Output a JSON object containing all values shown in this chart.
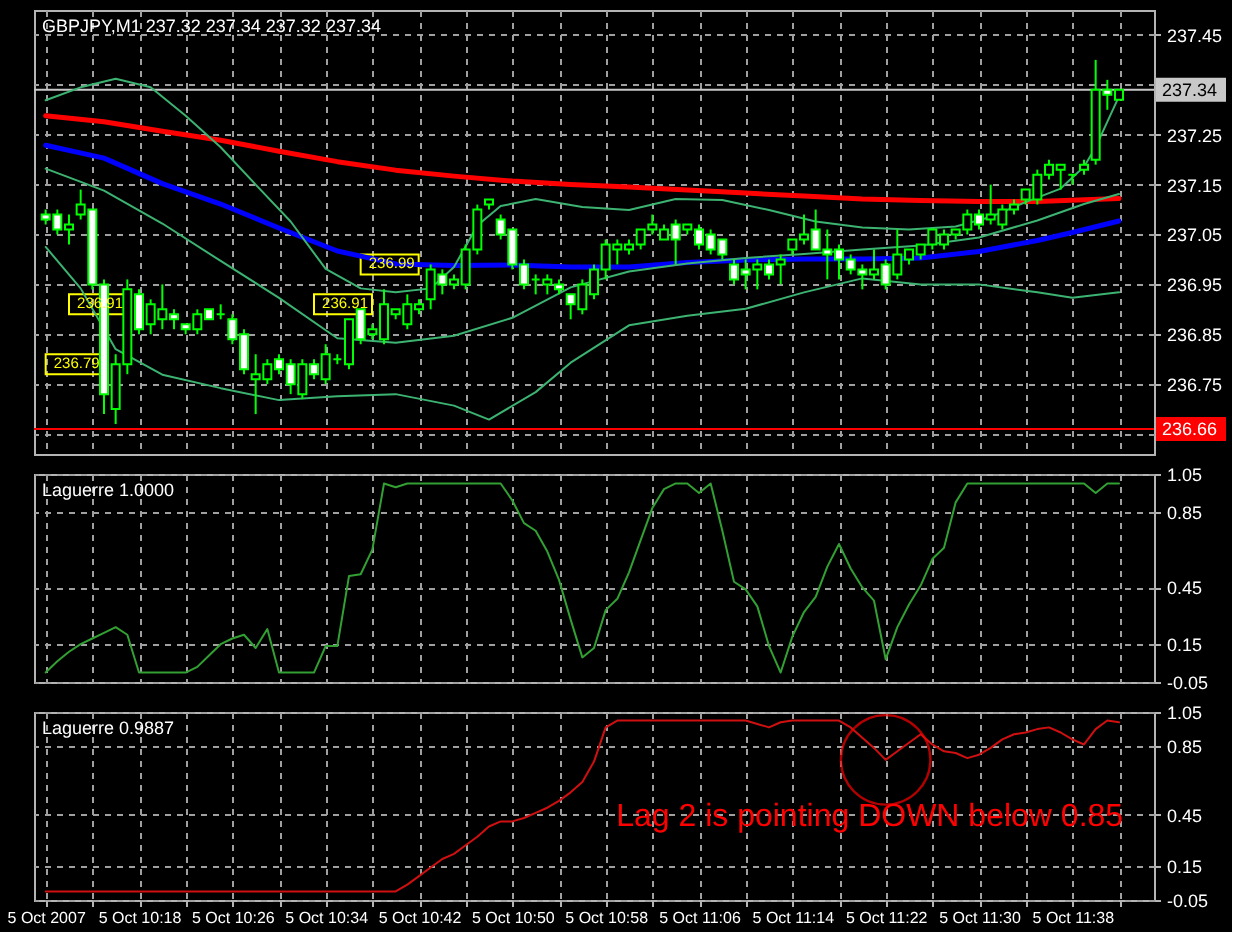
{
  "chart_data": [
    {
      "type": "candlestick",
      "title": "GBPJPY,M1 237.32 237.34 237.32 237.34",
      "color": "#00ff00",
      "x": [
        "2007-10-05T10:10",
        "2007-10-05T10:11",
        "2007-10-05T10:12",
        "2007-10-05T10:13",
        "2007-10-05T10:14",
        "2007-10-05T10:15",
        "2007-10-05T10:16",
        "2007-10-05T10:17",
        "2007-10-05T10:18",
        "2007-10-05T10:19",
        "2007-10-05T10:20",
        "2007-10-05T10:21",
        "2007-10-05T10:22",
        "2007-10-05T10:23",
        "2007-10-05T10:24",
        "2007-10-05T10:25",
        "2007-10-05T10:26",
        "2007-10-05T10:27",
        "2007-10-05T10:28",
        "2007-10-05T10:29",
        "2007-10-05T10:30",
        "2007-10-05T10:31",
        "2007-10-05T10:32",
        "2007-10-05T10:33",
        "2007-10-05T10:34",
        "2007-10-05T10:35",
        "2007-10-05T10:36",
        "2007-10-05T10:37",
        "2007-10-05T10:38",
        "2007-10-05T10:39",
        "2007-10-05T10:40",
        "2007-10-05T10:41",
        "2007-10-05T10:42",
        "2007-10-05T10:43",
        "2007-10-05T10:44",
        "2007-10-05T10:45",
        "2007-10-05T10:46",
        "2007-10-05T10:47",
        "2007-10-05T10:48",
        "2007-10-05T10:49",
        "2007-10-05T10:50",
        "2007-10-05T10:51",
        "2007-10-05T10:52",
        "2007-10-05T10:53",
        "2007-10-05T10:54",
        "2007-10-05T10:55",
        "2007-10-05T10:56",
        "2007-10-05T10:57",
        "2007-10-05T10:58",
        "2007-10-05T10:59",
        "2007-10-05T11:00",
        "2007-10-05T11:01",
        "2007-10-05T11:02",
        "2007-10-05T11:03",
        "2007-10-05T11:04",
        "2007-10-05T11:05",
        "2007-10-05T11:06",
        "2007-10-05T11:07",
        "2007-10-05T11:08",
        "2007-10-05T11:09",
        "2007-10-05T11:10",
        "2007-10-05T11:11",
        "2007-10-05T11:12",
        "2007-10-05T11:13",
        "2007-10-05T11:14",
        "2007-10-05T11:15",
        "2007-10-05T11:16",
        "2007-10-05T11:17",
        "2007-10-05T11:18",
        "2007-10-05T11:19",
        "2007-10-05T11:20",
        "2007-10-05T11:21",
        "2007-10-05T11:22",
        "2007-10-05T11:23",
        "2007-10-05T11:24",
        "2007-10-05T11:25",
        "2007-10-05T11:26",
        "2007-10-05T11:27",
        "2007-10-05T11:28",
        "2007-10-05T11:29",
        "2007-10-05T11:30",
        "2007-10-05T11:31",
        "2007-10-05T11:32",
        "2007-10-05T11:33",
        "2007-10-05T11:34",
        "2007-10-05T11:35",
        "2007-10-05T11:36",
        "2007-10-05T11:37",
        "2007-10-05T11:38",
        "2007-10-05T11:39",
        "2007-10-05T11:40",
        "2007-10-05T11:41",
        "2007-10-05T11:42"
      ],
      "ohlc": [
        [
          237.09,
          237.1,
          237.07,
          237.08
        ],
        [
          237.09,
          237.1,
          237.05,
          237.06
        ],
        [
          237.06,
          237.09,
          237.03,
          237.07
        ],
        [
          237.09,
          237.14,
          237.08,
          237.11
        ],
        [
          237.1,
          237.1,
          236.94,
          236.95
        ],
        [
          236.95,
          236.96,
          236.69,
          236.73
        ],
        [
          236.7,
          236.81,
          236.67,
          236.79
        ],
        [
          236.79,
          236.96,
          236.77,
          236.94
        ],
        [
          236.93,
          236.94,
          236.85,
          236.86
        ],
        [
          236.87,
          236.92,
          236.85,
          236.91
        ],
        [
          236.88,
          236.95,
          236.86,
          236.9
        ],
        [
          236.89,
          236.9,
          236.86,
          236.88
        ],
        [
          236.87,
          236.87,
          236.85,
          236.86
        ],
        [
          236.86,
          236.9,
          236.85,
          236.89
        ],
        [
          236.9,
          236.9,
          236.88,
          236.88
        ],
        [
          236.89,
          236.91,
          236.88,
          236.89
        ],
        [
          236.88,
          236.89,
          236.83,
          236.84
        ],
        [
          236.85,
          236.86,
          236.77,
          236.78
        ],
        [
          236.76,
          236.81,
          236.69,
          236.77
        ],
        [
          236.76,
          236.8,
          236.75,
          236.79
        ],
        [
          236.8,
          236.81,
          236.77,
          236.78
        ],
        [
          236.79,
          236.8,
          236.73,
          236.75
        ],
        [
          236.73,
          236.8,
          236.72,
          236.79
        ],
        [
          236.79,
          236.8,
          236.76,
          236.77
        ],
        [
          236.76,
          236.83,
          236.75,
          236.81
        ],
        [
          236.8,
          236.81,
          236.79,
          236.8
        ],
        [
          236.79,
          236.88,
          236.78,
          236.88
        ],
        [
          236.9,
          236.9,
          236.83,
          236.84
        ],
        [
          236.85,
          236.87,
          236.84,
          236.86
        ],
        [
          236.84,
          236.94,
          236.83,
          236.91
        ],
        [
          236.89,
          236.9,
          236.88,
          236.9
        ],
        [
          236.87,
          236.93,
          236.86,
          236.91
        ],
        [
          236.9,
          236.92,
          236.89,
          236.91
        ],
        [
          236.92,
          236.99,
          236.9,
          236.98
        ],
        [
          236.97,
          236.98,
          236.93,
          236.95
        ],
        [
          236.95,
          236.97,
          236.94,
          236.96
        ],
        [
          236.95,
          237.03,
          236.94,
          237.02
        ],
        [
          237.02,
          237.11,
          237.01,
          237.1
        ],
        [
          237.11,
          237.12,
          237.1,
          237.12
        ],
        [
          237.08,
          237.09,
          237.04,
          237.05
        ],
        [
          237.06,
          237.06,
          236.98,
          236.99
        ],
        [
          236.99,
          237.0,
          236.94,
          236.95
        ],
        [
          236.96,
          236.97,
          236.93,
          236.96
        ],
        [
          236.95,
          236.97,
          236.93,
          236.96
        ],
        [
          236.95,
          236.96,
          236.93,
          236.94
        ],
        [
          236.93,
          236.93,
          236.88,
          236.91
        ],
        [
          236.9,
          236.96,
          236.89,
          236.95
        ],
        [
          236.93,
          236.99,
          236.92,
          236.98
        ],
        [
          236.98,
          237.04,
          236.96,
          237.03
        ],
        [
          237.02,
          237.04,
          236.99,
          237.03
        ],
        [
          237.02,
          237.04,
          237.01,
          237.03
        ],
        [
          237.03,
          237.06,
          237.02,
          237.06
        ],
        [
          237.06,
          237.09,
          237.05,
          237.07
        ],
        [
          237.04,
          237.07,
          237.04,
          237.06
        ],
        [
          237.07,
          237.08,
          236.99,
          237.04
        ],
        [
          237.06,
          237.07,
          237.05,
          237.07
        ],
        [
          237.06,
          237.07,
          237.02,
          237.03
        ],
        [
          237.05,
          237.06,
          237.01,
          237.02
        ],
        [
          237.04,
          237.04,
          237.0,
          237.01
        ],
        [
          236.99,
          237.0,
          236.95,
          236.96
        ],
        [
          236.98,
          237.0,
          236.94,
          236.97
        ],
        [
          236.98,
          237.0,
          236.94,
          236.99
        ],
        [
          236.99,
          237.0,
          236.96,
          236.97
        ],
        [
          236.99,
          237.01,
          236.95,
          237.0
        ],
        [
          237.02,
          237.04,
          237.01,
          237.04
        ],
        [
          237.04,
          237.09,
          237.03,
          237.05
        ],
        [
          237.06,
          237.1,
          237.02,
          237.02
        ],
        [
          237.02,
          237.06,
          236.96,
          237.01
        ],
        [
          237.02,
          237.03,
          236.96,
          237.0
        ],
        [
          237.0,
          237.01,
          236.97,
          236.98
        ],
        [
          236.98,
          236.99,
          236.94,
          236.97
        ],
        [
          236.97,
          237.02,
          236.96,
          236.98
        ],
        [
          236.99,
          237.0,
          236.94,
          236.95
        ],
        [
          236.97,
          237.06,
          236.96,
          237.01
        ],
        [
          237.0,
          237.02,
          236.99,
          237.02
        ],
        [
          237.01,
          237.03,
          237.0,
          237.03
        ],
        [
          237.03,
          237.06,
          237.02,
          237.06
        ],
        [
          237.03,
          237.06,
          237.02,
          237.05
        ],
        [
          237.05,
          237.06,
          237.04,
          237.06
        ],
        [
          237.06,
          237.1,
          237.05,
          237.09
        ],
        [
          237.09,
          237.1,
          237.06,
          237.07
        ],
        [
          237.08,
          237.15,
          237.07,
          237.09
        ],
        [
          237.07,
          237.11,
          237.06,
          237.1
        ],
        [
          237.1,
          237.12,
          237.09,
          237.11
        ],
        [
          237.12,
          237.14,
          237.11,
          237.14
        ],
        [
          237.12,
          237.18,
          237.11,
          237.17
        ],
        [
          237.17,
          237.2,
          237.16,
          237.19
        ],
        [
          237.18,
          237.19,
          237.14,
          237.19
        ],
        [
          237.17,
          237.17,
          237.15,
          237.17
        ],
        [
          237.18,
          237.2,
          237.17,
          237.19
        ],
        [
          237.2,
          237.4,
          237.19,
          237.34
        ],
        [
          237.34,
          237.36,
          237.3,
          237.33
        ],
        [
          237.32,
          237.34,
          237.32,
          237.34
        ]
      ],
      "colors": [
        "#ffffff",
        "#ffffff",
        "#000000",
        "#000000",
        "#ffffff",
        "#ffffff",
        "#000000",
        "#000000",
        "#ffffff",
        "#000000",
        "#000000",
        "#ffffff",
        "#ffffff",
        "#000000",
        "#ffffff",
        "#00ff00",
        "#ffffff",
        "#ffffff",
        "#000000",
        "#000000",
        "#ffffff",
        "#ffffff",
        "#000000",
        "#ffffff",
        "#000000",
        "#00ff00",
        "#000000",
        "#ffffff",
        "#000000",
        "#000000",
        "#000000",
        "#000000",
        "#000000",
        "#000000",
        "#ffffff",
        "#000000",
        "#000000",
        "#000000",
        "#000000",
        "#ffffff",
        "#ffffff",
        "#ffffff",
        "#00ff00",
        "#000000",
        "#ffffff",
        "#ffffff",
        "#000000",
        "#000000",
        "#000000",
        "#000000",
        "#000000",
        "#000000",
        "#000000",
        "#000000",
        "#ffffff",
        "#000000",
        "#ffffff",
        "#ffffff",
        "#ffffff",
        "#ffffff",
        "#ffffff",
        "#000000",
        "#ffffff",
        "#000000",
        "#000000",
        "#000000",
        "#ffffff",
        "#ffffff",
        "#ffffff",
        "#ffffff",
        "#ffffff",
        "#000000",
        "#ffffff",
        "#000000",
        "#000000",
        "#000000",
        "#000000",
        "#000000",
        "#000000",
        "#000000",
        "#ffffff",
        "#000000",
        "#000000",
        "#000000",
        "#000000",
        "#000000",
        "#000000",
        "#000000",
        "#00ff00",
        "#000000",
        "#000000",
        "#ffffff",
        "#000000"
      ],
      "series": [
        {
          "type": "line",
          "color": "#ff0000",
          "x": [
            "2007-10-05T10:10",
            "2007-10-05T10:15",
            "2007-10-05T10:20",
            "2007-10-05T10:25",
            "2007-10-05T10:30",
            "2007-10-05T10:35",
            "2007-10-05T10:40",
            "2007-10-05T10:45",
            "2007-10-05T10:50",
            "2007-10-05T10:55",
            "2007-10-05T11:00",
            "2007-10-05T11:05",
            "2007-10-05T11:10",
            "2007-10-05T11:15",
            "2007-10-05T11:20",
            "2007-10-05T11:25",
            "2007-10-05T11:30",
            "2007-10-05T11:35",
            "2007-10-05T11:42"
          ],
          "values": [
            237.288,
            237.276,
            237.257,
            237.239,
            237.217,
            237.196,
            237.179,
            237.167,
            237.157,
            237.15,
            237.145,
            237.139,
            237.133,
            237.127,
            237.121,
            237.118,
            237.116,
            237.116,
            237.122
          ]
        },
        {
          "type": "line",
          "color": "#0000ff",
          "x": [
            "2007-10-05T10:10",
            "2007-10-05T10:15",
            "2007-10-05T10:20",
            "2007-10-05T10:25",
            "2007-10-05T10:30",
            "2007-10-05T10:35",
            "2007-10-05T10:40",
            "2007-10-05T10:45",
            "2007-10-05T10:50",
            "2007-10-05T10:55",
            "2007-10-05T11:00",
            "2007-10-05T11:05",
            "2007-10-05T11:10",
            "2007-10-05T11:15",
            "2007-10-05T11:20",
            "2007-10-05T11:25",
            "2007-10-05T11:30",
            "2007-10-05T11:35",
            "2007-10-05T11:38",
            "2007-10-05T11:42"
          ],
          "values": [
            237.229,
            237.203,
            237.152,
            237.111,
            237.063,
            237.017,
            236.991,
            236.988,
            236.989,
            236.985,
            236.985,
            236.994,
            236.999,
            237.001,
            237.001,
            237.003,
            237.016,
            237.038,
            237.054,
            237.077
          ]
        },
        {
          "type": "line",
          "color": "#3cb371",
          "x": [
            "2007-10-05T10:10",
            "2007-10-05T10:13",
            "2007-10-05T10:16",
            "2007-10-05T10:19",
            "2007-10-05T10:22",
            "2007-10-05T10:25",
            "2007-10-05T10:28",
            "2007-10-05T10:31",
            "2007-10-05T10:34",
            "2007-10-05T10:37",
            "2007-10-05T10:40",
            "2007-10-05T10:43",
            "2007-10-05T10:45",
            "2007-10-05T10:47",
            "2007-10-05T10:49",
            "2007-10-05T10:52",
            "2007-10-05T10:56",
            "2007-10-05T11:00",
            "2007-10-05T11:04",
            "2007-10-05T11:08",
            "2007-10-05T11:12",
            "2007-10-05T11:16",
            "2007-10-05T11:20",
            "2007-10-05T11:24",
            "2007-10-05T11:28",
            "2007-10-05T11:31",
            "2007-10-05T11:34",
            "2007-10-05T11:37",
            "2007-10-05T11:39",
            "2007-10-05T11:40",
            "2007-10-05T11:42"
          ],
          "values": [
            237.319,
            237.345,
            237.362,
            237.345,
            237.288,
            237.225,
            237.15,
            237.076,
            236.981,
            236.942,
            236.934,
            236.942,
            236.985,
            237.068,
            237.107,
            237.121,
            237.105,
            237.099,
            237.121,
            237.119,
            237.099,
            237.076,
            237.064,
            237.06,
            237.066,
            237.085,
            237.115,
            237.142,
            237.186,
            237.225,
            237.327
          ]
        },
        {
          "type": "line",
          "color": "#3cb371",
          "x": [
            "2007-10-05T10:10",
            "2007-10-05T10:15",
            "2007-10-05T10:20",
            "2007-10-05T10:25",
            "2007-10-05T10:30",
            "2007-10-05T10:35",
            "2007-10-05T10:40",
            "2007-10-05T10:45",
            "2007-10-05T10:50",
            "2007-10-05T10:55",
            "2007-10-05T11:00",
            "2007-10-05T11:05",
            "2007-10-05T11:10",
            "2007-10-05T11:15",
            "2007-10-05T11:20",
            "2007-10-05T11:25",
            "2007-10-05T11:30",
            "2007-10-05T11:35",
            "2007-10-05T11:39",
            "2007-10-05T11:42"
          ],
          "values": [
            237.182,
            237.138,
            237.072,
            236.997,
            236.923,
            236.842,
            236.833,
            236.847,
            236.883,
            236.944,
            236.976,
            236.992,
            237.003,
            237.011,
            237.02,
            237.028,
            237.044,
            237.078,
            237.111,
            237.131
          ]
        },
        {
          "type": "line",
          "color": "#3cb371",
          "x": [
            "2007-10-05T10:10",
            "2007-10-05T10:13",
            "2007-10-05T10:16",
            "2007-10-05T10:20",
            "2007-10-05T10:25",
            "2007-10-05T10:30",
            "2007-10-05T10:35",
            "2007-10-05T10:40",
            "2007-10-05T10:45",
            "2007-10-05T10:48",
            "2007-10-05T10:52",
            "2007-10-05T10:55",
            "2007-10-05T11:00",
            "2007-10-05T11:05",
            "2007-10-05T11:10",
            "2007-10-05T11:15",
            "2007-10-05T11:20",
            "2007-10-05T11:25",
            "2007-10-05T11:30",
            "2007-10-05T11:35",
            "2007-10-05T11:38",
            "2007-10-05T11:42"
          ],
          "values": [
            237.025,
            236.942,
            236.82,
            236.769,
            236.742,
            236.718,
            236.726,
            236.73,
            236.707,
            236.679,
            236.734,
            236.793,
            236.868,
            236.887,
            236.901,
            236.934,
            236.962,
            236.95,
            236.95,
            236.934,
            236.923,
            236.934
          ]
        }
      ],
      "ref_lines": [
        {
          "axis": "y",
          "value": 237.34,
          "label": "237.34",
          "color": "#c8c8c8"
        },
        {
          "axis": "y",
          "value": 236.66,
          "label": "236.66",
          "color": "#ff0000"
        }
      ],
      "annotations": [
        {
          "text": "236.79",
          "x": "2007-10-05T10:16",
          "y": 236.79
        },
        {
          "text": "236.91",
          "x": "2007-10-05T10:18",
          "y": 236.91
        },
        {
          "text": "236.91",
          "x": "2007-10-05T10:39",
          "y": 236.91
        },
        {
          "text": "236.99",
          "x": "2007-10-05T10:43",
          "y": 236.99
        }
      ],
      "xlim": [
        "2007-10-05T10:09",
        "2007-10-05T11:45"
      ],
      "xticks": [
        {
          "value": "2007-10-05T10:10",
          "label": null
        },
        {
          "value": "2007-10-05T10:14",
          "label": null
        },
        {
          "value": "2007-10-05T10:18",
          "label": null
        },
        {
          "value": "2007-10-05T10:22",
          "label": null
        },
        {
          "value": "2007-10-05T10:26",
          "label": null
        },
        {
          "value": "2007-10-05T10:30",
          "label": null
        },
        {
          "value": "2007-10-05T10:34",
          "label": null
        },
        {
          "value": "2007-10-05T10:38",
          "label": null
        },
        {
          "value": "2007-10-05T10:42",
          "label": null
        },
        {
          "value": "2007-10-05T10:46",
          "label": null
        },
        {
          "value": "2007-10-05T10:50",
          "label": null
        },
        {
          "value": "2007-10-05T10:54",
          "label": null
        },
        {
          "value": "2007-10-05T10:58",
          "label": null
        },
        {
          "value": "2007-10-05T11:02",
          "label": null
        },
        {
          "value": "2007-10-05T11:06",
          "label": null
        },
        {
          "value": "2007-10-05T11:10",
          "label": null
        },
        {
          "value": "2007-10-05T11:14",
          "label": null
        },
        {
          "value": "2007-10-05T11:18",
          "label": null
        },
        {
          "value": "2007-10-05T11:22",
          "label": null
        },
        {
          "value": "2007-10-05T11:26",
          "label": null
        },
        {
          "value": "2007-10-05T11:30",
          "label": null
        },
        {
          "value": "2007-10-05T11:34",
          "label": null
        },
        {
          "value": "2007-10-05T11:38",
          "label": null
        },
        {
          "value": "2007-10-05T11:42",
          "label": null
        }
      ],
      "ylim": [
        236.61,
        237.5
      ],
      "yticks": [
        {
          "value": 236.65,
          "label": null
        },
        236.75,
        236.85,
        236.95,
        237.05,
        237.15,
        237.25,
        {
          "value": 237.35,
          "label": null
        },
        237.45
      ],
      "grid": true,
      "tick_labels": "y"
    },
    {
      "type": "line",
      "title": "Laguerre 1.0000",
      "color": "#32a032",
      "x": [
        "2007-10-05T10:10",
        "2007-10-05T10:11",
        "2007-10-05T10:12",
        "2007-10-05T10:13",
        "2007-10-05T10:14",
        "2007-10-05T10:15",
        "2007-10-05T10:16",
        "2007-10-05T10:17",
        "2007-10-05T10:18",
        "2007-10-05T10:19",
        "2007-10-05T10:20",
        "2007-10-05T10:21",
        "2007-10-05T10:22",
        "2007-10-05T10:23",
        "2007-10-05T10:24",
        "2007-10-05T10:25",
        "2007-10-05T10:26",
        "2007-10-05T10:27",
        "2007-10-05T10:28",
        "2007-10-05T10:29",
        "2007-10-05T10:30",
        "2007-10-05T10:31",
        "2007-10-05T10:32",
        "2007-10-05T10:33",
        "2007-10-05T10:34",
        "2007-10-05T10:35",
        "2007-10-05T10:36",
        "2007-10-05T10:37",
        "2007-10-05T10:38",
        "2007-10-05T10:39",
        "2007-10-05T10:40",
        "2007-10-05T10:41",
        "2007-10-05T10:42",
        "2007-10-05T10:43",
        "2007-10-05T10:44",
        "2007-10-05T10:45",
        "2007-10-05T10:46",
        "2007-10-05T10:47",
        "2007-10-05T10:48",
        "2007-10-05T10:49",
        "2007-10-05T10:50",
        "2007-10-05T10:51",
        "2007-10-05T10:52",
        "2007-10-05T10:53",
        "2007-10-05T10:54",
        "2007-10-05T10:55",
        "2007-10-05T10:56",
        "2007-10-05T10:57",
        "2007-10-05T10:58",
        "2007-10-05T10:59",
        "2007-10-05T11:00",
        "2007-10-05T11:01",
        "2007-10-05T11:02",
        "2007-10-05T11:03",
        "2007-10-05T11:04",
        "2007-10-05T11:05",
        "2007-10-05T11:06",
        "2007-10-05T11:07",
        "2007-10-05T11:08",
        "2007-10-05T11:09",
        "2007-10-05T11:10",
        "2007-10-05T11:11",
        "2007-10-05T11:12",
        "2007-10-05T11:13",
        "2007-10-05T11:14",
        "2007-10-05T11:15",
        "2007-10-05T11:16",
        "2007-10-05T11:17",
        "2007-10-05T11:18",
        "2007-10-05T11:19",
        "2007-10-05T11:20",
        "2007-10-05T11:21",
        "2007-10-05T11:22",
        "2007-10-05T11:23",
        "2007-10-05T11:24",
        "2007-10-05T11:25",
        "2007-10-05T11:26",
        "2007-10-05T11:27",
        "2007-10-05T11:28",
        "2007-10-05T11:29",
        "2007-10-05T11:30",
        "2007-10-05T11:31",
        "2007-10-05T11:32",
        "2007-10-05T11:33",
        "2007-10-05T11:34",
        "2007-10-05T11:35",
        "2007-10-05T11:36",
        "2007-10-05T11:37",
        "2007-10-05T11:38",
        "2007-10-05T11:39",
        "2007-10-05T11:40",
        "2007-10-05T11:41",
        "2007-10-05T11:42"
      ],
      "values": [
        0,
        0.06,
        0.11,
        0.15,
        0.18,
        0.21,
        0.24,
        0.2,
        0,
        0,
        0,
        0,
        0,
        0.03,
        0.09,
        0.15,
        0.18,
        0.2,
        0.13,
        0.23,
        0,
        0,
        0,
        0,
        0.14,
        0.14,
        0.51,
        0.52,
        0.65,
        1,
        0.98,
        1,
        1,
        1,
        1,
        1,
        1,
        1,
        1,
        1,
        0.91,
        0.79,
        0.75,
        0.64,
        0.49,
        0.28,
        0.08,
        0.13,
        0.33,
        0.39,
        0.53,
        0.7,
        0.87,
        0.97,
        1,
        1,
        0.95,
        1,
        0.75,
        0.48,
        0.44,
        0.35,
        0.14,
        0,
        0.19,
        0.32,
        0.4,
        0.56,
        0.68,
        0.55,
        0.45,
        0.38,
        0.07,
        0.24,
        0.36,
        0.46,
        0.6,
        0.66,
        0.9,
        1,
        1,
        1,
        1,
        1,
        1,
        1,
        1,
        1,
        1,
        1,
        0.95,
        1,
        1
      ],
      "xlim": [
        "2007-10-05T10:09",
        "2007-10-05T11:45"
      ],
      "xticks": [
        {
          "value": "2007-10-05T10:10",
          "label": null
        },
        {
          "value": "2007-10-05T10:14",
          "label": null
        },
        {
          "value": "2007-10-05T10:18",
          "label": null
        },
        {
          "value": "2007-10-05T10:22",
          "label": null
        },
        {
          "value": "2007-10-05T10:26",
          "label": null
        },
        {
          "value": "2007-10-05T10:30",
          "label": null
        },
        {
          "value": "2007-10-05T10:34",
          "label": null
        },
        {
          "value": "2007-10-05T10:38",
          "label": null
        },
        {
          "value": "2007-10-05T10:42",
          "label": null
        },
        {
          "value": "2007-10-05T10:46",
          "label": null
        },
        {
          "value": "2007-10-05T10:50",
          "label": null
        },
        {
          "value": "2007-10-05T10:54",
          "label": null
        },
        {
          "value": "2007-10-05T10:58",
          "label": null
        },
        {
          "value": "2007-10-05T11:02",
          "label": null
        },
        {
          "value": "2007-10-05T11:06",
          "label": null
        },
        {
          "value": "2007-10-05T11:10",
          "label": null
        },
        {
          "value": "2007-10-05T11:14",
          "label": null
        },
        {
          "value": "2007-10-05T11:18",
          "label": null
        },
        {
          "value": "2007-10-05T11:22",
          "label": null
        },
        {
          "value": "2007-10-05T11:26",
          "label": null
        },
        {
          "value": "2007-10-05T11:30",
          "label": null
        },
        {
          "value": "2007-10-05T11:34",
          "label": null
        },
        {
          "value": "2007-10-05T11:38",
          "label": null
        },
        {
          "value": "2007-10-05T11:42",
          "label": null
        }
      ],
      "ylim": [
        -0.05,
        1.05
      ],
      "yticks": [
        -0.05,
        0.15,
        0.45,
        0.85,
        1.05
      ],
      "grid": true,
      "tick_labels": "y"
    },
    {
      "type": "line",
      "title": "Laguerre 0.9887",
      "color": "#d01010",
      "x": [
        "2007-10-05T10:10",
        "2007-10-05T10:11",
        "2007-10-05T10:12",
        "2007-10-05T10:13",
        "2007-10-05T10:14",
        "2007-10-05T10:15",
        "2007-10-05T10:16",
        "2007-10-05T10:17",
        "2007-10-05T10:18",
        "2007-10-05T10:19",
        "2007-10-05T10:20",
        "2007-10-05T10:21",
        "2007-10-05T10:22",
        "2007-10-05T10:23",
        "2007-10-05T10:24",
        "2007-10-05T10:25",
        "2007-10-05T10:26",
        "2007-10-05T10:27",
        "2007-10-05T10:28",
        "2007-10-05T10:29",
        "2007-10-05T10:30",
        "2007-10-05T10:31",
        "2007-10-05T10:32",
        "2007-10-05T10:33",
        "2007-10-05T10:34",
        "2007-10-05T10:35",
        "2007-10-05T10:36",
        "2007-10-05T10:37",
        "2007-10-05T10:38",
        "2007-10-05T10:39",
        "2007-10-05T10:40",
        "2007-10-05T10:41",
        "2007-10-05T10:42",
        "2007-10-05T10:43",
        "2007-10-05T10:44",
        "2007-10-05T10:45",
        "2007-10-05T10:46",
        "2007-10-05T10:47",
        "2007-10-05T10:48",
        "2007-10-05T10:49",
        "2007-10-05T10:50",
        "2007-10-05T10:51",
        "2007-10-05T10:52",
        "2007-10-05T10:53",
        "2007-10-05T10:54",
        "2007-10-05T10:55",
        "2007-10-05T10:56",
        "2007-10-05T10:57",
        "2007-10-05T10:58",
        "2007-10-05T10:59",
        "2007-10-05T11:00",
        "2007-10-05T11:01",
        "2007-10-05T11:02",
        "2007-10-05T11:03",
        "2007-10-05T11:04",
        "2007-10-05T11:05",
        "2007-10-05T11:06",
        "2007-10-05T11:07",
        "2007-10-05T11:08",
        "2007-10-05T11:09",
        "2007-10-05T11:10",
        "2007-10-05T11:11",
        "2007-10-05T11:12",
        "2007-10-05T11:13",
        "2007-10-05T11:14",
        "2007-10-05T11:15",
        "2007-10-05T11:16",
        "2007-10-05T11:17",
        "2007-10-05T11:18",
        "2007-10-05T11:19",
        "2007-10-05T11:20",
        "2007-10-05T11:21",
        "2007-10-05T11:22",
        "2007-10-05T11:23",
        "2007-10-05T11:24",
        "2007-10-05T11:25",
        "2007-10-05T11:26",
        "2007-10-05T11:27",
        "2007-10-05T11:28",
        "2007-10-05T11:29",
        "2007-10-05T11:30",
        "2007-10-05T11:31",
        "2007-10-05T11:32",
        "2007-10-05T11:33",
        "2007-10-05T11:34",
        "2007-10-05T11:35",
        "2007-10-05T11:36",
        "2007-10-05T11:37",
        "2007-10-05T11:38",
        "2007-10-05T11:39",
        "2007-10-05T11:40",
        "2007-10-05T11:41",
        "2007-10-05T11:42"
      ],
      "values": [
        0,
        0,
        0,
        0,
        0,
        0,
        0,
        0,
        0,
        0,
        0,
        0,
        0,
        0,
        0,
        0,
        0,
        0,
        0,
        0,
        0,
        0,
        0,
        0,
        0,
        0,
        0,
        0,
        0,
        0,
        0,
        0.04,
        0.09,
        0.14,
        0.19,
        0.22,
        0.27,
        0.32,
        0.38,
        0.41,
        0.41,
        0.43,
        0.46,
        0.49,
        0.53,
        0.58,
        0.64,
        0.76,
        0.96,
        1,
        1,
        1,
        1,
        1,
        1,
        1,
        1,
        1,
        1,
        1,
        1,
        0.98,
        0.96,
        0.99,
        1,
        1,
        1,
        1,
        1,
        0.96,
        0.9,
        0.84,
        0.77,
        0.82,
        0.87,
        0.92,
        0.86,
        0.82,
        0.81,
        0.78,
        0.8,
        0.84,
        0.89,
        0.92,
        0.93,
        0.95,
        0.96,
        0.93,
        0.89,
        0.86,
        0.95,
        1,
        0.99
      ],
      "annotations": [
        {
          "text": "Lag 2 is pointing DOWN below 0.85",
          "x": "2007-10-05T11:22",
          "y": 0.77
        }
      ],
      "xlim": [
        "2007-10-05T10:09",
        "2007-10-05T11:45"
      ],
      "xticks": [
        {
          "value": "2007-10-05T10:10",
          "label": "5 Oct 2007"
        },
        {
          "value": "2007-10-05T10:14",
          "label": null
        },
        {
          "value": "2007-10-05T10:18",
          "label": "5 Oct 10:18"
        },
        {
          "value": "2007-10-05T10:22",
          "label": null
        },
        {
          "value": "2007-10-05T10:26",
          "label": "5 Oct 10:26"
        },
        {
          "value": "2007-10-05T10:30",
          "label": null
        },
        {
          "value": "2007-10-05T10:34",
          "label": "5 Oct 10:34"
        },
        {
          "value": "2007-10-05T10:38",
          "label": null
        },
        {
          "value": "2007-10-05T10:42",
          "label": "5 Oct 10:42"
        },
        {
          "value": "2007-10-05T10:46",
          "label": null
        },
        {
          "value": "2007-10-05T10:50",
          "label": "5 Oct 10:50"
        },
        {
          "value": "2007-10-05T10:54",
          "label": null
        },
        {
          "value": "2007-10-05T10:58",
          "label": "5 Oct 10:58"
        },
        {
          "value": "2007-10-05T11:02",
          "label": null
        },
        {
          "value": "2007-10-05T11:06",
          "label": "5 Oct 11:06"
        },
        {
          "value": "2007-10-05T11:10",
          "label": null
        },
        {
          "value": "2007-10-05T11:14",
          "label": "5 Oct 11:14"
        },
        {
          "value": "2007-10-05T11:18",
          "label": null
        },
        {
          "value": "2007-10-05T11:22",
          "label": "5 Oct 11:22"
        },
        {
          "value": "2007-10-05T11:26",
          "label": null
        },
        {
          "value": "2007-10-05T11:30",
          "label": "5 Oct 11:30"
        },
        {
          "value": "2007-10-05T11:34",
          "label": null
        },
        {
          "value": "2007-10-05T11:38",
          "label": "5 Oct 11:38"
        },
        {
          "value": "2007-10-05T11:42",
          "label": null
        }
      ],
      "ylim": [
        -0.05,
        1.05
      ],
      "yticks": [
        -0.05,
        0.15,
        0.45,
        0.85,
        1.05
      ],
      "grid": true
    }
  ]
}
